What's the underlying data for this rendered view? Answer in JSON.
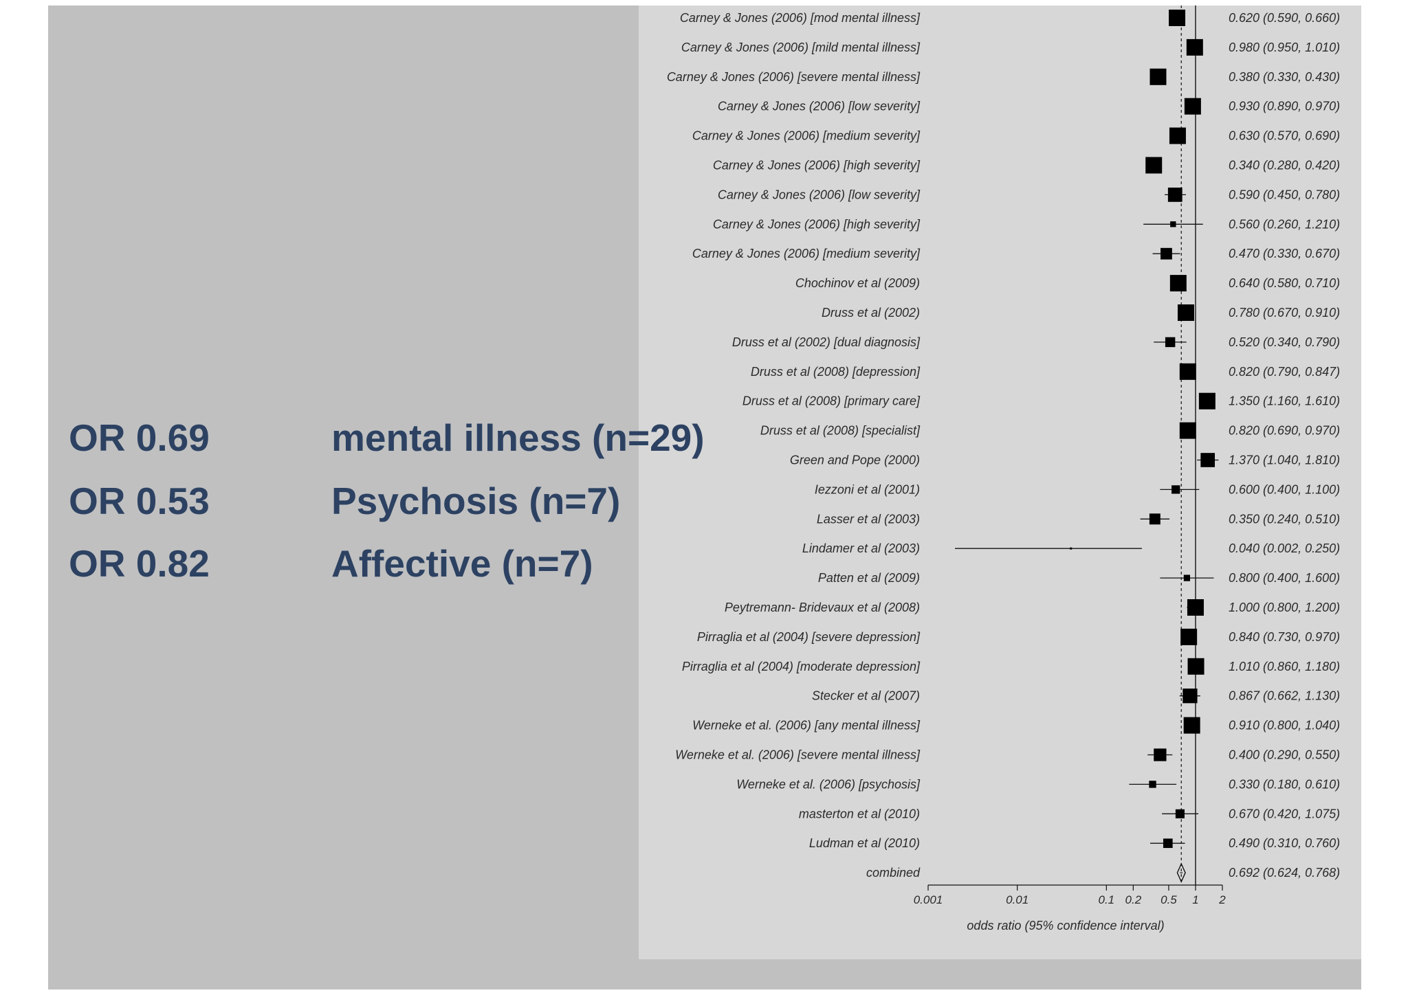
{
  "summary": [
    {
      "or": "OR 0.69",
      "group": "mental illness (n=29)"
    },
    {
      "or": "OR 0.53",
      "group": "Psychosis (n=7)"
    },
    {
      "or": "OR 0.82",
      "group": "Affective (n=7)"
    }
  ],
  "chart_data": {
    "type": "forest",
    "xlabel": "odds ratio (95% confidence interval)",
    "x_scale": "log",
    "xlim": [
      0.001,
      2
    ],
    "ticks": [
      "0.001",
      "0.01",
      "0.1",
      "0.2",
      "0.5",
      "1",
      "2"
    ],
    "reference_line": 1,
    "pooled_line": 0.692,
    "studies": [
      {
        "label": "Carney & Jones (2006) [mod mental illness]",
        "or": 0.62,
        "lo": 0.59,
        "hi": 0.66,
        "ci_text": "0.620 (0.590, 0.660)"
      },
      {
        "label": "Carney & Jones (2006) [mild mental illness]",
        "or": 0.98,
        "lo": 0.95,
        "hi": 1.01,
        "ci_text": "0.980 (0.950, 1.010)"
      },
      {
        "label": "Carney & Jones (2006) [severe mental illness]",
        "or": 0.38,
        "lo": 0.33,
        "hi": 0.43,
        "ci_text": "0.380 (0.330, 0.430)"
      },
      {
        "label": "Carney & Jones (2006) [low severity]",
        "or": 0.93,
        "lo": 0.89,
        "hi": 0.97,
        "ci_text": "0.930 (0.890, 0.970)"
      },
      {
        "label": "Carney & Jones (2006) [medium severity]",
        "or": 0.63,
        "lo": 0.57,
        "hi": 0.69,
        "ci_text": "0.630 (0.570, 0.690)"
      },
      {
        "label": "Carney & Jones (2006) [high severity]",
        "or": 0.34,
        "lo": 0.28,
        "hi": 0.42,
        "ci_text": "0.340 (0.280, 0.420)"
      },
      {
        "label": "Carney & Jones (2006) [low severity]",
        "or": 0.59,
        "lo": 0.45,
        "hi": 0.78,
        "ci_text": "0.590 (0.450, 0.780)"
      },
      {
        "label": "Carney & Jones (2006) [high severity]",
        "or": 0.56,
        "lo": 0.26,
        "hi": 1.21,
        "ci_text": "0.560 (0.260, 1.210)"
      },
      {
        "label": "Carney & Jones (2006) [medium severity]",
        "or": 0.47,
        "lo": 0.33,
        "hi": 0.67,
        "ci_text": "0.470 (0.330, 0.670)"
      },
      {
        "label": "Chochinov et al (2009)",
        "or": 0.64,
        "lo": 0.58,
        "hi": 0.71,
        "ci_text": "0.640 (0.580, 0.710)"
      },
      {
        "label": "Druss et al (2002)",
        "or": 0.78,
        "lo": 0.67,
        "hi": 0.91,
        "ci_text": "0.780 (0.670, 0.910)"
      },
      {
        "label": "Druss et al (2002) [dual diagnosis]",
        "or": 0.52,
        "lo": 0.34,
        "hi": 0.79,
        "ci_text": "0.520 (0.340, 0.790)"
      },
      {
        "label": "Druss et al (2008) [depression]",
        "or": 0.82,
        "lo": 0.79,
        "hi": 0.847,
        "ci_text": "0.820 (0.790, 0.847)"
      },
      {
        "label": "Druss et al (2008) [primary care]",
        "or": 1.35,
        "lo": 1.16,
        "hi": 1.61,
        "ci_text": "1.350 (1.160, 1.610)"
      },
      {
        "label": "Druss et al (2008) [specialist]",
        "or": 0.82,
        "lo": 0.69,
        "hi": 0.97,
        "ci_text": "0.820 (0.690, 0.970)"
      },
      {
        "label": "Green and Pope (2000)",
        "or": 1.37,
        "lo": 1.04,
        "hi": 1.81,
        "ci_text": "1.370 (1.040, 1.810)"
      },
      {
        "label": "Iezzoni et al (2001)",
        "or": 0.6,
        "lo": 0.4,
        "hi": 1.1,
        "ci_text": "0.600 (0.400, 1.100)"
      },
      {
        "label": "Lasser et al (2003)",
        "or": 0.35,
        "lo": 0.24,
        "hi": 0.51,
        "ci_text": "0.350 (0.240, 0.510)"
      },
      {
        "label": "Lindamer et al (2003)",
        "or": 0.04,
        "lo": 0.002,
        "hi": 0.25,
        "ci_text": "0.040 (0.002, 0.250)"
      },
      {
        "label": "Patten et al (2009)",
        "or": 0.8,
        "lo": 0.4,
        "hi": 1.6,
        "ci_text": "0.800 (0.400, 1.600)"
      },
      {
        "label": "Peytremann- Bridevaux et al (2008)",
        "or": 1.0,
        "lo": 0.8,
        "hi": 1.2,
        "ci_text": "1.000 (0.800, 1.200)"
      },
      {
        "label": "Pirraglia et al (2004) [severe depression]",
        "or": 0.84,
        "lo": 0.73,
        "hi": 0.97,
        "ci_text": "0.840 (0.730, 0.970)"
      },
      {
        "label": "Pirraglia et al (2004) [moderate depression]",
        "or": 1.01,
        "lo": 0.86,
        "hi": 1.18,
        "ci_text": "1.010 (0.860, 1.180)"
      },
      {
        "label": "Stecker et al (2007)",
        "or": 0.867,
        "lo": 0.662,
        "hi": 1.13,
        "ci_text": "0.867 (0.662, 1.130)"
      },
      {
        "label": "Werneke et al. (2006) [any mental illness]",
        "or": 0.91,
        "lo": 0.8,
        "hi": 1.04,
        "ci_text": "0.910 (0.800, 1.040)"
      },
      {
        "label": "Werneke et al. (2006) [severe mental illness]",
        "or": 0.4,
        "lo": 0.29,
        "hi": 0.55,
        "ci_text": "0.400 (0.290, 0.550)"
      },
      {
        "label": "Werneke et al. (2006) [psychosis]",
        "or": 0.33,
        "lo": 0.18,
        "hi": 0.61,
        "ci_text": "0.330 (0.180, 0.610)"
      },
      {
        "label": "masterton et al (2010)",
        "or": 0.67,
        "lo": 0.42,
        "hi": 1.075,
        "ci_text": "0.670 (0.420, 1.075)"
      },
      {
        "label": "Ludman et al (2010)",
        "or": 0.49,
        "lo": 0.31,
        "hi": 0.76,
        "ci_text": "0.490 (0.310, 0.760)"
      }
    ],
    "combined": {
      "label": "combined",
      "or": 0.692,
      "lo": 0.624,
      "hi": 0.768,
      "ci_text": "0.692 (0.624, 0.768)"
    }
  }
}
